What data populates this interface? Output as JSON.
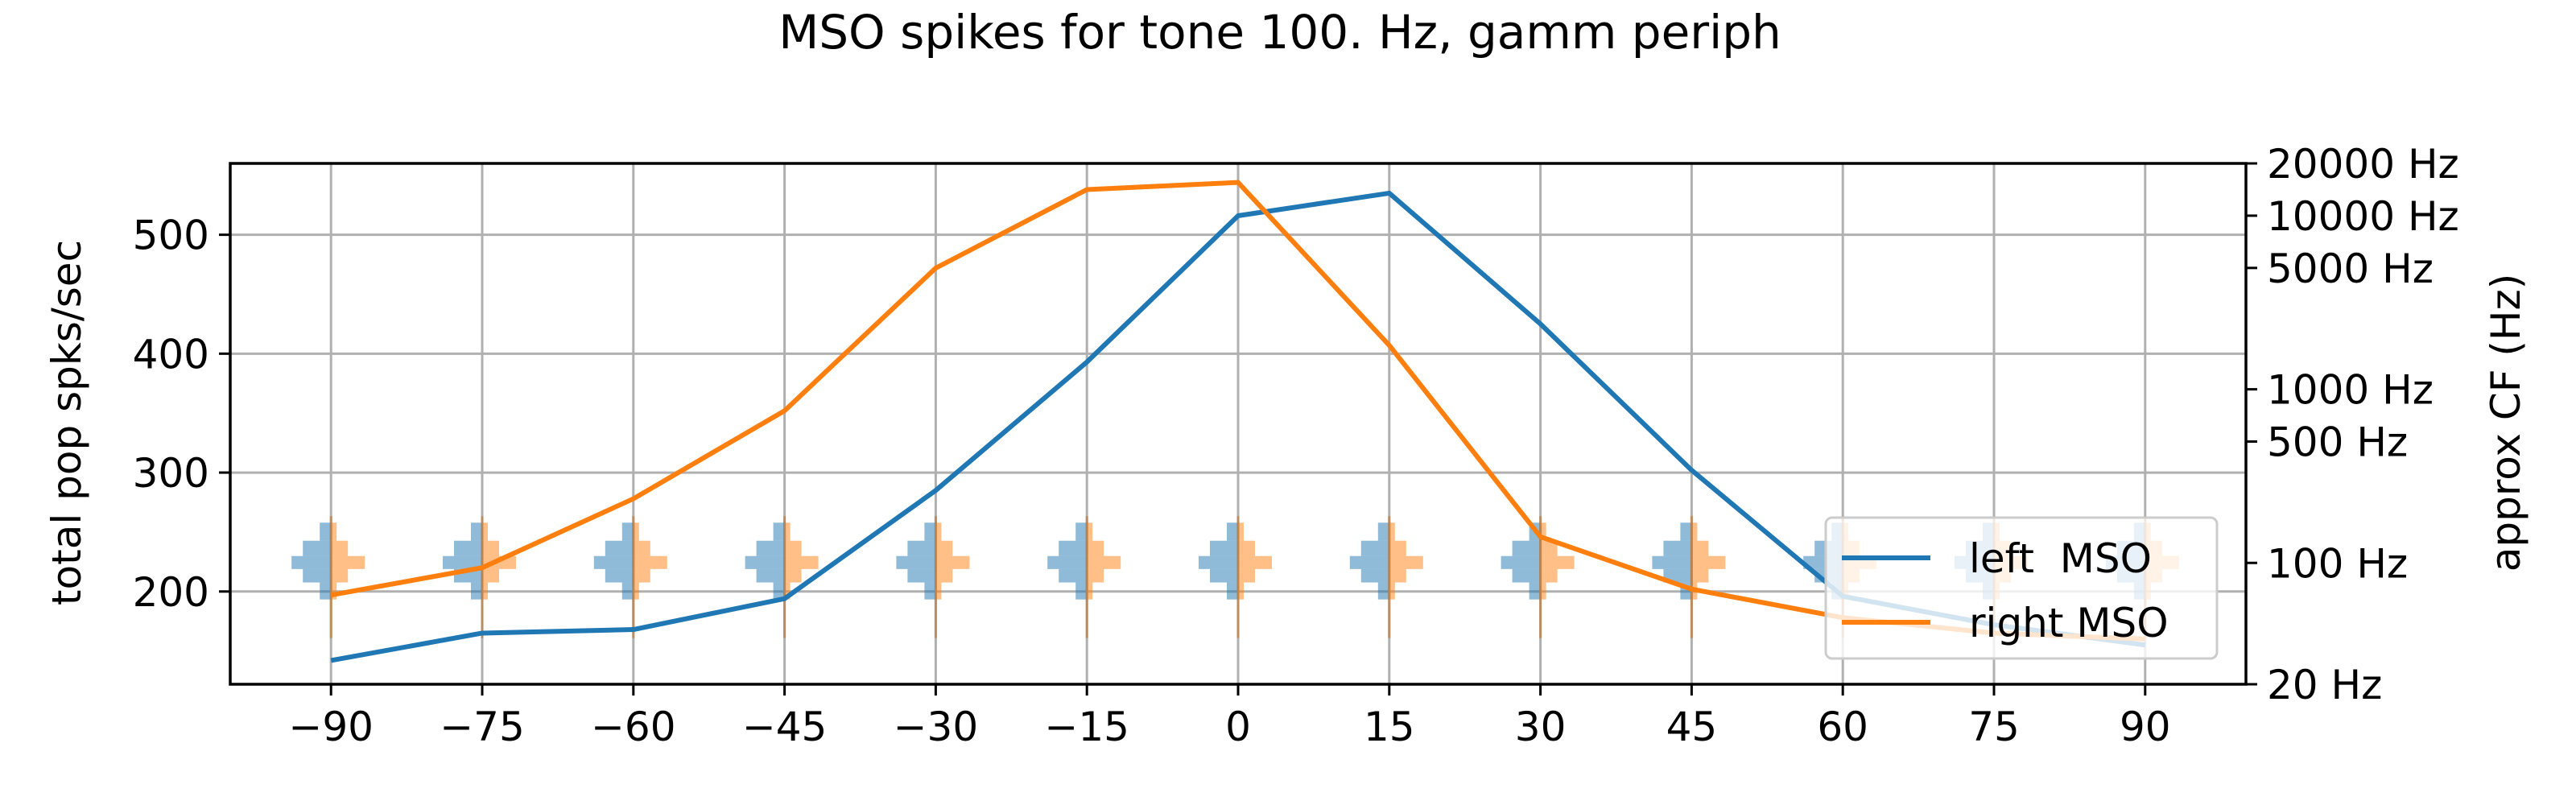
{
  "chart_data": {
    "type": "line",
    "title": "MSO spikes for tone 100. Hz, gamm periph",
    "xlabel": "",
    "ylabel": "total pop spks/sec",
    "ylabel_right": "approx CF (Hz)",
    "x": [
      -90,
      -75,
      -60,
      -45,
      -30,
      -15,
      0,
      15,
      30,
      45,
      60,
      75,
      90
    ],
    "xlim": [
      -100,
      100
    ],
    "ylim": [
      122,
      560
    ],
    "x_ticks": [
      -90,
      -75,
      -60,
      -45,
      -30,
      -15,
      0,
      15,
      30,
      45,
      60,
      75,
      90
    ],
    "x_tick_labels": [
      "−90",
      "−75",
      "−60",
      "−45",
      "−30",
      "−15",
      "0",
      "15",
      "30",
      "45",
      "60",
      "75",
      "90"
    ],
    "y_ticks": [
      200,
      300,
      400,
      500
    ],
    "y_tick_labels": [
      "200",
      "300",
      "400",
      "500"
    ],
    "right_axis": {
      "scale": "log",
      "lim_hz": [
        20,
        20000
      ],
      "ticks_hz": [
        20,
        100,
        500,
        1000,
        5000,
        10000,
        20000
      ],
      "tick_labels": [
        "20 Hz",
        "100 Hz",
        "500 Hz",
        "1000 Hz",
        "5000 Hz",
        "10000 Hz",
        "20000 Hz"
      ]
    },
    "grid": true,
    "legend_position": "lower-right",
    "series": [
      {
        "name": "left  MSO",
        "color": "#1f77b4",
        "values": [
          142,
          165,
          168,
          194,
          285,
          393,
          516,
          535,
          425,
          302,
          196,
          172,
          155
        ]
      },
      {
        "name": "right MSO",
        "color": "#ff7f0e",
        "values": [
          197,
          220,
          278,
          352,
          472,
          538,
          544,
          407,
          246,
          202,
          178,
          165,
          160
        ]
      }
    ],
    "cf_histograms": {
      "left_color": "#1f77b4",
      "right_color": "#ff7f0e",
      "cf_hz": [
        150,
        120,
        100,
        85,
        70
      ],
      "left_counts": [
        2,
        5,
        7,
        5,
        2
      ],
      "right_counts": [
        1,
        3,
        6,
        3,
        1
      ]
    }
  }
}
